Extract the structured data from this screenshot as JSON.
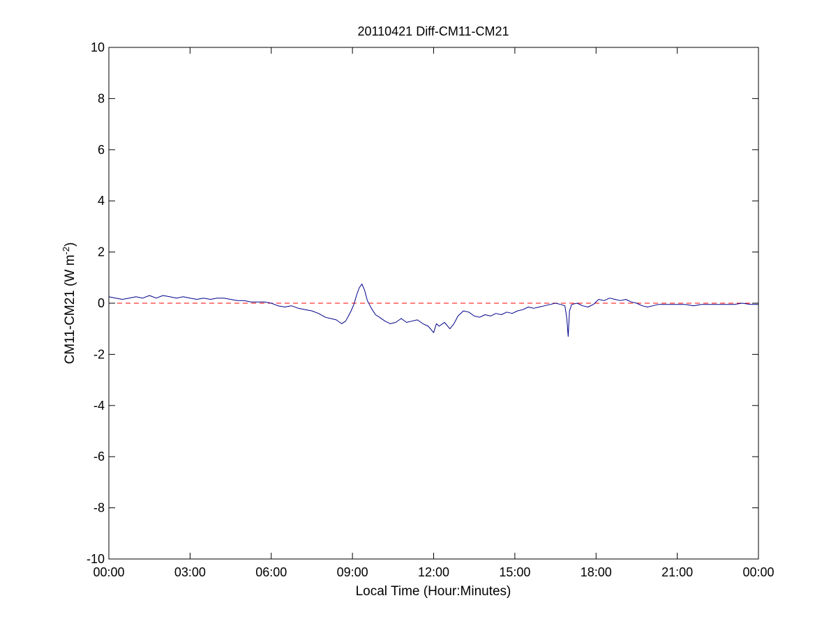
{
  "chart_data": {
    "type": "line",
    "title": "20110421 Diff-CM11-CM21",
    "xlabel": "Local Time (Hour:Minutes)",
    "ylabel": "CM11-CM21 (W m",
    "ylabel_sup": "-2",
    "ylabel_suffix": ")",
    "xlim": [
      0,
      24
    ],
    "ylim": [
      -10,
      10
    ],
    "xtick_values": [
      0,
      3,
      6,
      9,
      12,
      15,
      18,
      21,
      24
    ],
    "xtick_labels": [
      "00:00",
      "03:00",
      "06:00",
      "09:00",
      "12:00",
      "15:00",
      "18:00",
      "21:00",
      "00:00"
    ],
    "ytick_values": [
      -10,
      -8,
      -6,
      -4,
      -2,
      0,
      2,
      4,
      6,
      8,
      10
    ],
    "ytick_labels": [
      "-10",
      "-8",
      "-6",
      "-4",
      "-2",
      "0",
      "2",
      "4",
      "6",
      "8",
      "10"
    ],
    "grid": false,
    "reference_line": {
      "y": 0,
      "color": "#ff0000",
      "style": "dashed"
    },
    "series": [
      {
        "color": "#00008b",
        "x": [
          0.0,
          0.25,
          0.5,
          0.75,
          1.0,
          1.25,
          1.5,
          1.75,
          2.0,
          2.25,
          2.5,
          2.75,
          3.0,
          3.25,
          3.5,
          3.75,
          4.0,
          4.25,
          4.5,
          4.75,
          5.0,
          5.25,
          5.5,
          5.75,
          6.0,
          6.25,
          6.5,
          6.75,
          7.0,
          7.25,
          7.5,
          7.75,
          8.0,
          8.2,
          8.4,
          8.6,
          8.75,
          8.85,
          8.95,
          9.05,
          9.15,
          9.25,
          9.35,
          9.45,
          9.55,
          9.7,
          9.85,
          10.0,
          10.2,
          10.4,
          10.6,
          10.8,
          11.0,
          11.2,
          11.4,
          11.6,
          11.8,
          12.0,
          12.1,
          12.2,
          12.4,
          12.6,
          12.75,
          12.9,
          13.1,
          13.3,
          13.5,
          13.7,
          13.9,
          14.1,
          14.3,
          14.5,
          14.7,
          14.9,
          15.1,
          15.3,
          15.5,
          15.7,
          15.9,
          16.1,
          16.3,
          16.5,
          16.7,
          16.85,
          16.92,
          16.97,
          17.02,
          17.1,
          17.3,
          17.5,
          17.7,
          17.9,
          18.1,
          18.3,
          18.5,
          18.7,
          18.9,
          19.1,
          19.3,
          19.5,
          19.7,
          19.9,
          20.1,
          20.3,
          20.5,
          20.7,
          21.0,
          21.3,
          21.6,
          21.9,
          22.2,
          22.5,
          22.8,
          23.1,
          23.4,
          23.7,
          24.0
        ],
        "y": [
          0.25,
          0.2,
          0.15,
          0.2,
          0.25,
          0.2,
          0.3,
          0.2,
          0.3,
          0.25,
          0.2,
          0.25,
          0.2,
          0.15,
          0.2,
          0.15,
          0.2,
          0.2,
          0.15,
          0.1,
          0.1,
          0.05,
          0.05,
          0.05,
          0.0,
          -0.1,
          -0.15,
          -0.1,
          -0.2,
          -0.25,
          -0.3,
          -0.4,
          -0.55,
          -0.6,
          -0.65,
          -0.8,
          -0.7,
          -0.5,
          -0.3,
          -0.05,
          0.3,
          0.6,
          0.75,
          0.5,
          0.1,
          -0.2,
          -0.45,
          -0.55,
          -0.7,
          -0.8,
          -0.75,
          -0.6,
          -0.75,
          -0.7,
          -0.65,
          -0.8,
          -0.9,
          -1.15,
          -0.8,
          -0.9,
          -0.75,
          -1.0,
          -0.8,
          -0.5,
          -0.3,
          -0.35,
          -0.5,
          -0.55,
          -0.45,
          -0.5,
          -0.4,
          -0.45,
          -0.35,
          -0.4,
          -0.3,
          -0.25,
          -0.15,
          -0.2,
          -0.15,
          -0.1,
          -0.05,
          0.0,
          -0.05,
          -0.1,
          -0.6,
          -1.3,
          -0.3,
          -0.05,
          0.0,
          -0.1,
          -0.15,
          -0.05,
          0.15,
          0.1,
          0.2,
          0.15,
          0.1,
          0.15,
          0.05,
          0.0,
          -0.1,
          -0.15,
          -0.1,
          -0.05,
          -0.05,
          -0.05,
          -0.05,
          -0.05,
          -0.1,
          -0.05,
          -0.05,
          -0.05,
          -0.05,
          -0.05,
          0.0,
          -0.05,
          -0.05
        ]
      }
    ]
  }
}
